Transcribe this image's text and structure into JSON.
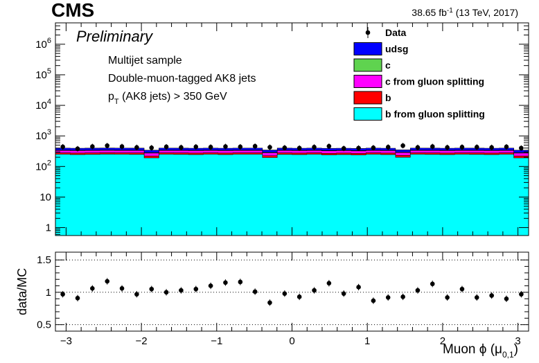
{
  "header": {
    "experiment": "CMS",
    "lumi": "38.65 fb",
    "lumi_exp": "-1",
    "lumi_suffix": " (13 TeV, 2017)",
    "status": "Preliminary"
  },
  "labels": {
    "line1": "Multijet sample",
    "line2": "Double-muon-tagged AK8 jets",
    "line3_p": "p",
    "line3_sub": "T",
    "line3_rest": " (AK8 jets) > 350 GeV"
  },
  "legend": [
    {
      "name": "Data",
      "kind": "marker",
      "color": "#000000"
    },
    {
      "name": "udsg",
      "kind": "box",
      "color": "#0000ff"
    },
    {
      "name": "c",
      "kind": "box",
      "color": "#5fd34f"
    },
    {
      "name": "c from gluon splitting",
      "kind": "box",
      "color": "#ff00ff"
    },
    {
      "name": "b",
      "kind": "box",
      "color": "#ff0000"
    },
    {
      "name": "b from gluon splitting",
      "kind": "box",
      "color": "#00ffff"
    }
  ],
  "ratio_label": "data/MC",
  "xaxis": {
    "main": "Muon ",
    "phi": "ϕ",
    "paren_open": " (",
    "mu": "μ",
    "sub": "0,1",
    "paren_close": ")"
  },
  "chart_data": [
    {
      "type": "area",
      "stacked": true,
      "yscale": "log",
      "ylim": [
        0.55,
        5000000
      ],
      "xlim": [
        -3.1416,
        3.1416
      ],
      "ytick_labels": [
        "1",
        "10",
        "10^2",
        "10^3",
        "10^4",
        "10^5",
        "10^6"
      ],
      "bins": 32,
      "components": [
        {
          "name": "b from gluon splitting",
          "color": "#00ffff",
          "values": [
            250,
            245,
            248,
            252,
            250,
            248,
            190,
            250,
            248,
            245,
            250,
            245,
            250,
            250,
            195,
            248,
            245,
            250,
            240,
            245,
            238,
            250,
            245,
            200,
            250,
            248,
            245,
            250,
            248,
            245,
            250,
            190
          ]
        },
        {
          "name": "b",
          "color": "#ff0000",
          "values": [
            30,
            30,
            30,
            30,
            30,
            30,
            30,
            30,
            30,
            30,
            30,
            30,
            30,
            30,
            30,
            30,
            30,
            30,
            30,
            30,
            30,
            30,
            30,
            30,
            30,
            30,
            30,
            30,
            30,
            30,
            30,
            30
          ]
        },
        {
          "name": "c from gluon splitting",
          "color": "#ff00ff",
          "values": [
            55,
            55,
            55,
            55,
            55,
            55,
            55,
            55,
            55,
            55,
            55,
            55,
            55,
            55,
            55,
            55,
            55,
            55,
            55,
            55,
            55,
            55,
            55,
            55,
            55,
            55,
            55,
            55,
            55,
            55,
            55,
            55
          ]
        },
        {
          "name": "c",
          "color": "#5fd34f",
          "values": [
            10,
            10,
            10,
            10,
            10,
            10,
            10,
            10,
            10,
            10,
            10,
            10,
            10,
            10,
            10,
            10,
            10,
            10,
            10,
            10,
            10,
            10,
            10,
            10,
            10,
            10,
            10,
            10,
            10,
            10,
            10,
            10
          ]
        },
        {
          "name": "udsg",
          "color": "#0000ff",
          "values": [
            55,
            55,
            55,
            55,
            55,
            55,
            55,
            55,
            55,
            55,
            55,
            55,
            55,
            55,
            55,
            55,
            55,
            55,
            55,
            55,
            55,
            55,
            55,
            55,
            55,
            55,
            55,
            55,
            55,
            55,
            55,
            55
          ]
        }
      ],
      "data": {
        "name": "Data",
        "values": [
          440,
          380,
          450,
          480,
          450,
          420,
          410,
          440,
          420,
          440,
          430,
          450,
          440,
          460,
          425,
          410,
          400,
          430,
          460,
          390,
          400,
          410,
          430,
          480,
          420,
          450,
          420,
          430,
          430,
          420,
          440,
          400
        ]
      }
    },
    {
      "type": "scatter",
      "ylabel": "data/MC",
      "ylim": [
        0.4,
        1.62
      ],
      "xlim": [
        -3.1416,
        3.1416
      ],
      "yticks": [
        0.5,
        1,
        1.5
      ],
      "ytick_labels": [
        "0.5",
        "1",
        "1.5"
      ],
      "xticks": [
        -3,
        -2,
        -1,
        0,
        1,
        2,
        3
      ],
      "xtick_labels": [
        "−3",
        "−2",
        "−1",
        "0",
        "1",
        "2",
        "3"
      ],
      "grid_y": [
        0.5,
        1.0,
        1.5
      ],
      "x": [
        -3.044,
        -2.847,
        -2.651,
        -2.454,
        -2.258,
        -2.062,
        -1.865,
        -1.669,
        -1.473,
        -1.276,
        -1.08,
        -0.884,
        -0.687,
        -0.491,
        -0.295,
        -0.098,
        0.098,
        0.295,
        0.491,
        0.687,
        0.884,
        1.08,
        1.276,
        1.473,
        1.669,
        1.865,
        2.062,
        2.258,
        2.454,
        2.651,
        2.847,
        3.044
      ],
      "values": [
        0.97,
        0.91,
        1.06,
        1.17,
        1.06,
        0.97,
        1.05,
        1.0,
        1.03,
        1.05,
        1.1,
        1.15,
        1.16,
        1.01,
        0.84,
        0.98,
        0.93,
        1.03,
        1.14,
        0.98,
        1.08,
        0.87,
        0.92,
        0.93,
        1.03,
        1.13,
        0.92,
        1.05,
        0.92,
        0.95,
        0.9,
        0.97
      ],
      "errors": [
        0.05,
        0.05,
        0.05,
        0.05,
        0.05,
        0.05,
        0.05,
        0.05,
        0.05,
        0.05,
        0.05,
        0.05,
        0.05,
        0.05,
        0.05,
        0.05,
        0.05,
        0.05,
        0.05,
        0.05,
        0.05,
        0.05,
        0.05,
        0.05,
        0.05,
        0.05,
        0.05,
        0.05,
        0.05,
        0.05,
        0.05,
        0.05
      ]
    }
  ]
}
